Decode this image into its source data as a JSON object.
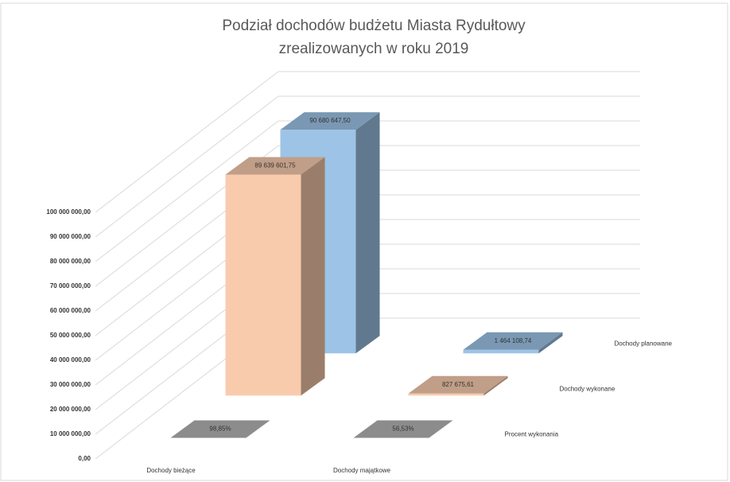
{
  "chart_data": {
    "type": "bar3d",
    "title": [
      "Podział dochodów budżetu Miasta Rydułtowy",
      "zrealizowanych w roku 2019"
    ],
    "categories": [
      "Dochody bieżące",
      "Dochody majątkowe"
    ],
    "series": [
      {
        "name": "Procent wykonania",
        "color": "#b4b4b4",
        "values": [
          98.85,
          56.53
        ],
        "value_labels": [
          "98,85%",
          "56,53%"
        ]
      },
      {
        "name": "Dochody wykonane",
        "color": "#f8cbad",
        "values": [
          89639601.75,
          827675.61
        ],
        "value_labels": [
          "89 639 601,75",
          "827 675,61"
        ]
      },
      {
        "name": "Dochody planowane",
        "color": "#9dc3e6",
        "values": [
          90680647.5,
          1464108.74
        ],
        "value_labels": [
          "90 680 647,50",
          "1 464 108,74"
        ]
      }
    ],
    "ylim": [
      0,
      100000000
    ],
    "yticks": [
      {
        "value": 0,
        "label": "0,00"
      },
      {
        "value": 10000000,
        "label": "10 000 000,00"
      },
      {
        "value": 20000000,
        "label": "20 000 000,00"
      },
      {
        "value": 30000000,
        "label": "30 000 000,00"
      },
      {
        "value": 40000000,
        "label": "40 000 000,00"
      },
      {
        "value": 50000000,
        "label": "50 000 000,00"
      },
      {
        "value": 60000000,
        "label": "60 000 000,00"
      },
      {
        "value": 70000000,
        "label": "70 000 000,00"
      },
      {
        "value": 80000000,
        "label": "80 000 000,00"
      },
      {
        "value": 90000000,
        "label": "90 000 000,00"
      },
      {
        "value": 100000000,
        "label": "100 000 000,00"
      }
    ],
    "grid": true
  }
}
